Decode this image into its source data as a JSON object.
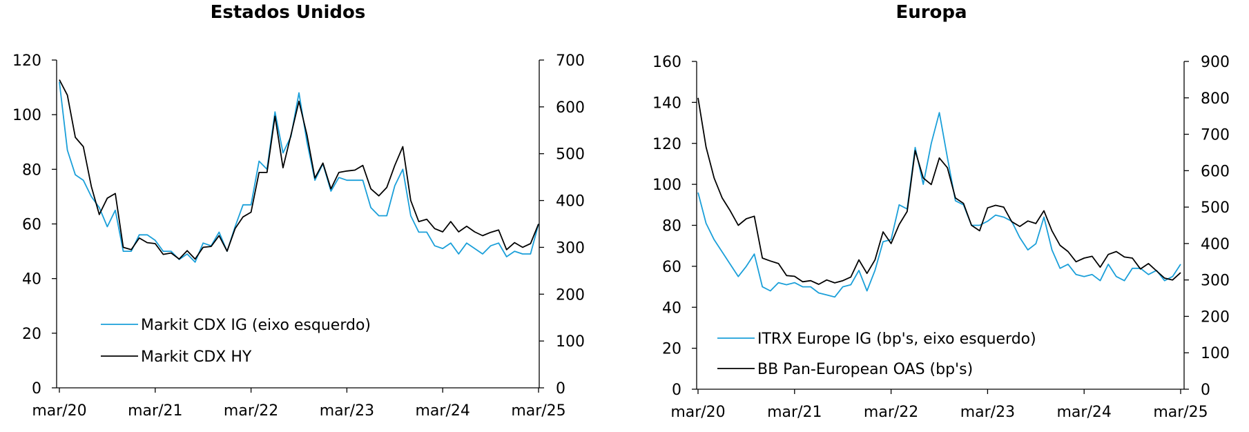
{
  "colors": {
    "primary_series": "#1a9fd9",
    "secondary_series": "#000000"
  },
  "chart_data": [
    {
      "type": "line",
      "title": "Estados Unidos",
      "x_ticks": [
        "mar/20",
        "mar/21",
        "mar/22",
        "mar/23",
        "mar/24",
        "mar/25"
      ],
      "y_left": {
        "lim": [
          0,
          120
        ],
        "ticks": [
          0,
          20,
          40,
          60,
          80,
          100,
          120
        ]
      },
      "y_right": {
        "lim": [
          0,
          700
        ],
        "ticks": [
          0,
          100,
          200,
          300,
          400,
          500,
          600,
          700
        ]
      },
      "legend_position": "bottom-left",
      "series": [
        {
          "name": "Markit CDX IG (eixo esquerdo)",
          "axis": "left",
          "color": "#1a9fd9",
          "values": [
            112,
            87,
            78,
            76,
            70,
            66,
            59,
            65,
            50,
            50,
            56,
            56,
            54,
            50,
            50,
            47,
            49,
            46,
            53,
            52,
            57,
            50,
            59,
            67,
            67,
            83,
            80,
            101,
            86,
            92,
            108,
            90,
            76,
            82,
            72,
            77,
            76,
            76,
            76,
            66,
            63,
            63,
            74,
            80,
            63,
            57,
            57,
            52,
            51,
            53,
            49,
            53,
            51,
            49,
            52,
            53,
            48,
            50,
            49,
            49,
            60
          ]
        },
        {
          "name": "Markit CDX HY",
          "axis": "right",
          "color": "#000000",
          "values": [
            658,
            625,
            535,
            515,
            430,
            370,
            405,
            415,
            300,
            295,
            320,
            310,
            308,
            285,
            288,
            275,
            293,
            275,
            300,
            302,
            325,
            292,
            340,
            365,
            375,
            460,
            460,
            580,
            470,
            540,
            612,
            540,
            448,
            480,
            425,
            460,
            463,
            465,
            475,
            425,
            410,
            428,
            475,
            515,
            400,
            355,
            360,
            340,
            333,
            355,
            333,
            345,
            333,
            325,
            332,
            337,
            295,
            310,
            300,
            308,
            350
          ]
        }
      ]
    },
    {
      "type": "line",
      "title": "Europa",
      "x_ticks": [
        "mar/20",
        "mar/21",
        "mar/22",
        "mar/23",
        "mar/24",
        "mar/25"
      ],
      "y_left": {
        "lim": [
          0,
          160
        ],
        "ticks": [
          0,
          20,
          40,
          60,
          80,
          100,
          120,
          140,
          160
        ]
      },
      "y_right": {
        "lim": [
          0,
          900
        ],
        "ticks": [
          0,
          100,
          200,
          300,
          400,
          500,
          600,
          700,
          800,
          900
        ]
      },
      "legend_position": "bottom-left",
      "series": [
        {
          "name": "ITRX Europe IG (bp's, eixo esquerdo)",
          "axis": "left",
          "color": "#1a9fd9",
          "values": [
            96,
            81,
            73,
            67,
            61,
            55,
            60,
            66,
            50,
            48,
            52,
            51,
            52,
            50,
            50,
            47,
            46,
            45,
            50,
            51,
            58,
            48,
            58,
            72,
            73,
            90,
            88,
            118,
            100,
            120,
            135,
            113,
            92,
            90,
            80,
            80,
            82,
            85,
            84,
            82,
            74,
            68,
            71,
            84,
            68,
            59,
            61,
            56,
            55,
            56,
            53,
            61,
            55,
            53,
            59,
            59,
            56,
            58,
            53,
            55,
            61
          ]
        },
        {
          "name": "BB Pan-European OAS (bp's)",
          "axis": "right",
          "color": "#000000",
          "values": [
            800,
            665,
            580,
            525,
            490,
            450,
            468,
            475,
            360,
            352,
            345,
            312,
            310,
            295,
            298,
            288,
            300,
            292,
            298,
            308,
            355,
            318,
            355,
            432,
            400,
            452,
            488,
            655,
            580,
            562,
            635,
            608,
            525,
            510,
            450,
            435,
            498,
            505,
            500,
            460,
            447,
            462,
            455,
            490,
            435,
            395,
            378,
            350,
            360,
            365,
            335,
            370,
            378,
            363,
            360,
            330,
            345,
            325,
            305,
            300,
            320
          ]
        }
      ]
    }
  ]
}
